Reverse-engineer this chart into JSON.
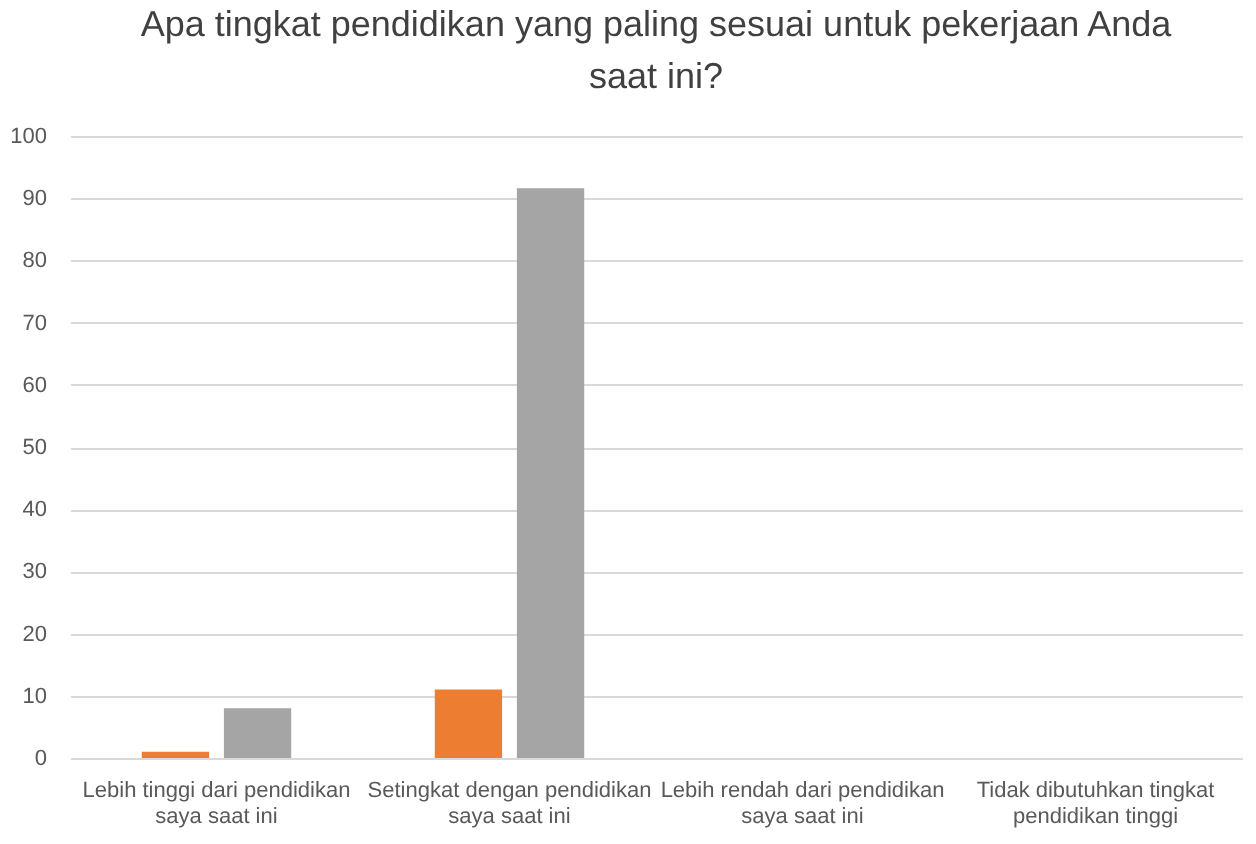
{
  "chart_data": {
    "type": "bar",
    "title": "Apa tingkat pendidikan yang paling sesuai untuk pekerjaan Anda saat ini?",
    "categories": [
      "Lebih tinggi dari pendidikan saya saat ini",
      "Setingkat dengan pendidikan saya saat ini",
      "Lebih rendah dari pendidikan saya saat ini",
      "Tidak dibutuhkan tingkat pendidikan tinggi"
    ],
    "series": [
      {
        "color": "#ed7d31",
        "values": [
          1,
          11,
          0,
          0
        ]
      },
      {
        "color": "#a5a5a5",
        "values": [
          8,
          91.6,
          0,
          0
        ]
      }
    ],
    "ylim": [
      0,
      100
    ],
    "yticks": [
      0,
      10,
      20,
      30,
      40,
      50,
      60,
      70,
      80,
      90,
      100
    ],
    "grid": "y",
    "legend": false
  }
}
